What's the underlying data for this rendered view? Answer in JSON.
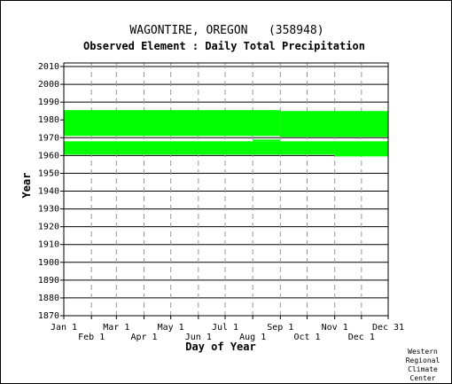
{
  "chart_data": {
    "type": "bar",
    "title": "WAGONTIRE, OREGON   (358948)",
    "subtitle": "Observed Element : Daily Total Precipitation",
    "xlabel": "Day of Year",
    "ylabel": "Year",
    "xlim": [
      1,
      365
    ],
    "ylim": [
      1870,
      2012
    ],
    "y_ticks": [
      1870,
      1880,
      1890,
      1900,
      1910,
      1920,
      1930,
      1940,
      1950,
      1960,
      1970,
      1980,
      1990,
      2000,
      2010
    ],
    "x_ticks_top": [
      {
        "label": "Jan 1",
        "day": 1
      },
      {
        "label": "Mar 1",
        "day": 60
      },
      {
        "label": "May 1",
        "day": 121
      },
      {
        "label": "Jul 1",
        "day": 182
      },
      {
        "label": "Sep 1",
        "day": 244
      },
      {
        "label": "Nov 1",
        "day": 305
      },
      {
        "label": "Dec 31",
        "day": 365
      }
    ],
    "x_ticks_bottom": [
      {
        "label": "Feb 1",
        "day": 32
      },
      {
        "label": "Apr 1",
        "day": 91
      },
      {
        "label": "Jun 1",
        "day": 152
      },
      {
        "label": "Aug 1",
        "day": 213
      },
      {
        "label": "Oct 1",
        "day": 274
      },
      {
        "label": "Dec 1",
        "day": 335
      }
    ],
    "grid": true,
    "data_color": "#00ff00",
    "series": [
      {
        "values": [
          {
            "day_start": 1,
            "day_end": 244,
            "year_start": 1971,
            "year_end": 1985.5
          },
          {
            "day_start": 244,
            "day_end": 365,
            "year_start": 1970.5,
            "year_end": 1985
          },
          {
            "day_start": 1,
            "day_end": 365,
            "year_start": 1960.5,
            "year_end": 1968
          },
          {
            "day_start": 305,
            "day_end": 365,
            "year_start": 1959.5,
            "year_end": 1961
          },
          {
            "day_start": 213,
            "day_end": 244,
            "year_start": 1968,
            "year_end": 1969
          }
        ]
      }
    ]
  },
  "credit": [
    "Western",
    "Regional",
    "Climate",
    "Center"
  ]
}
